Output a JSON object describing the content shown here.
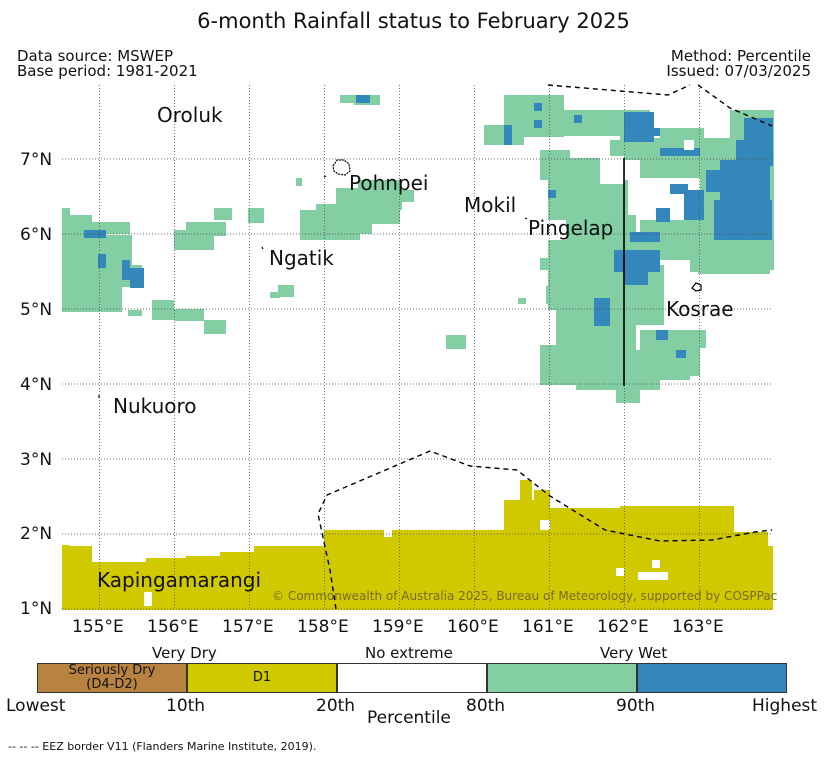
{
  "title": "6-month Rainfall status to February 2025",
  "meta": {
    "data_source": "Data source: MSWEP",
    "base_period": "Base period: 1981-2021",
    "method": "Method: Percentile",
    "issued": "Issued: 07/03/2025"
  },
  "map": {
    "lon_range": [
      154.5,
      164.0
    ],
    "lat_range": [
      0.97,
      7.97
    ],
    "lon_ticks": [
      "155°E",
      "156°E",
      "157°E",
      "158°E",
      "159°E",
      "160°E",
      "161°E",
      "162°E",
      "163°E"
    ],
    "lat_ticks": [
      "1°N",
      "2°N",
      "3°N",
      "4°N",
      "5°N",
      "6°N",
      "7°N"
    ],
    "places": [
      "Oroluk",
      "Pohnpei",
      "Mokil",
      "Pingelap",
      "Ngatik",
      "Kosrae",
      "Nukuoro",
      "Kapingamarangi"
    ],
    "copyright": "© Commonwealth of Australia 2025, Bureau of Meteorology, supported by COSPPac",
    "colors": {
      "seriously_dry": "#b88340",
      "very_dry": "#d0c900",
      "no_extreme": "#ffffff",
      "very_wet": "#83cfa3",
      "highest": "#3487ba"
    }
  },
  "legend": {
    "categories": [
      "Very Dry",
      "No extreme",
      "Very Wet"
    ],
    "segments": [
      "Seriously Dry\n(D4-D2)",
      "D1",
      "",
      "",
      ""
    ],
    "bottom_labels": [
      "Lowest",
      "10th",
      "20th",
      "80th",
      "90th",
      "Highest"
    ],
    "axis_label": "Percentile"
  },
  "footer": "--  --  -- EEZ border V11 (Flanders Marine Institute, 2019)."
}
